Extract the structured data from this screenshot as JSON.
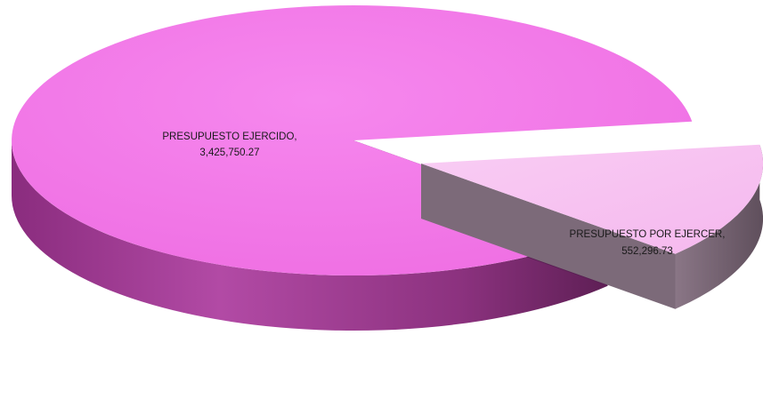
{
  "chart_data": {
    "type": "pie",
    "style": "3d-exploded",
    "slices": [
      {
        "label": "PRESUPUESTO EJERCIDO,",
        "value": 3425750.27,
        "value_text": "3,425,750.27",
        "color": "#f27ae8",
        "side_color": "#a73e99"
      },
      {
        "label": "PRESUPUESTO POR EJERCER,",
        "value": 552296.73,
        "value_text": "552,296.73",
        "color": "#f8c3f1",
        "side_color": "#6e5d6b"
      }
    ],
    "exploded_slice": "PRESUPUESTO POR EJERCER,",
    "legend": "none"
  }
}
